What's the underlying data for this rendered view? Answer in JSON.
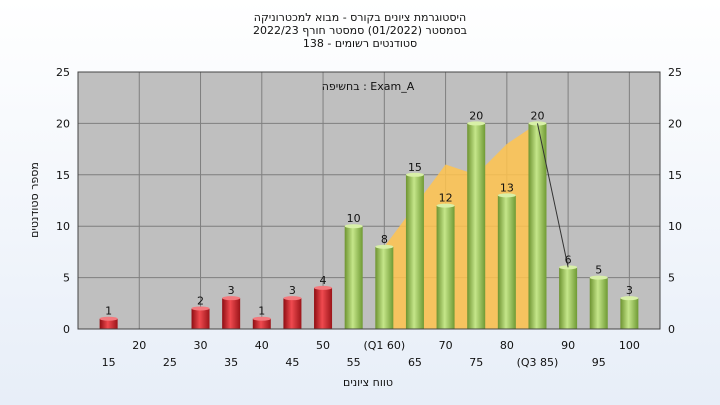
{
  "chart_data": {
    "type": "bar",
    "title_lines": [
      "היסטוגרמת ציונים בקורס - מבוא למכטרוניקה",
      "בסמסטר  (01/2022)  סמסטר חורף  2022/23",
      "סטודנטים רשומים - 138"
    ],
    "inner_label": "בחשיפה : Exam_A",
    "ylabel": "מספר סטודנטים",
    "xlabel": "טווח ציונים",
    "ylim": [
      0,
      25
    ],
    "yticks": [
      0,
      5,
      10,
      15,
      20,
      25
    ],
    "xticks_upper": [
      "20",
      "30",
      "40",
      "50",
      "(Q1 60)",
      "70",
      "80",
      "90",
      "100"
    ],
    "xticks_lower": [
      "15",
      "25",
      "35",
      "45",
      "55",
      "65",
      "75",
      "(Q3 85)",
      "95"
    ],
    "bars": [
      {
        "x": 15,
        "value": 1,
        "color": "red"
      },
      {
        "x": 30,
        "value": 2,
        "color": "red"
      },
      {
        "x": 35,
        "value": 3,
        "color": "red"
      },
      {
        "x": 40,
        "value": 1,
        "color": "red"
      },
      {
        "x": 45,
        "value": 3,
        "color": "red"
      },
      {
        "x": 50,
        "value": 4,
        "color": "red"
      },
      {
        "x": 55,
        "value": 10,
        "color": "green"
      },
      {
        "x": 60,
        "value": 8,
        "color": "green"
      },
      {
        "x": 65,
        "value": 15,
        "color": "green"
      },
      {
        "x": 70,
        "value": 12,
        "color": "green"
      },
      {
        "x": 75,
        "value": 20,
        "color": "green"
      },
      {
        "x": 80,
        "value": 13,
        "color": "green"
      },
      {
        "x": 85,
        "value": 20,
        "color": "green"
      },
      {
        "x": 90,
        "value": 6,
        "color": "green"
      },
      {
        "x": 95,
        "value": 5,
        "color": "green"
      },
      {
        "x": 100,
        "value": 3,
        "color": "green"
      }
    ],
    "interquartile_area": {
      "x": [
        60,
        65,
        70,
        75,
        80,
        85
      ],
      "y": [
        8,
        12,
        16,
        15,
        18,
        20
      ],
      "color": "#ffc34d"
    },
    "trend_line": {
      "x": [
        85,
        90
      ],
      "y": [
        20,
        6
      ]
    },
    "colors": {
      "red": "#e0242a",
      "green": "#9fcf54",
      "plot_bg": "#bfbfbf",
      "grid": "#7f7f7f"
    },
    "grid": true
  }
}
